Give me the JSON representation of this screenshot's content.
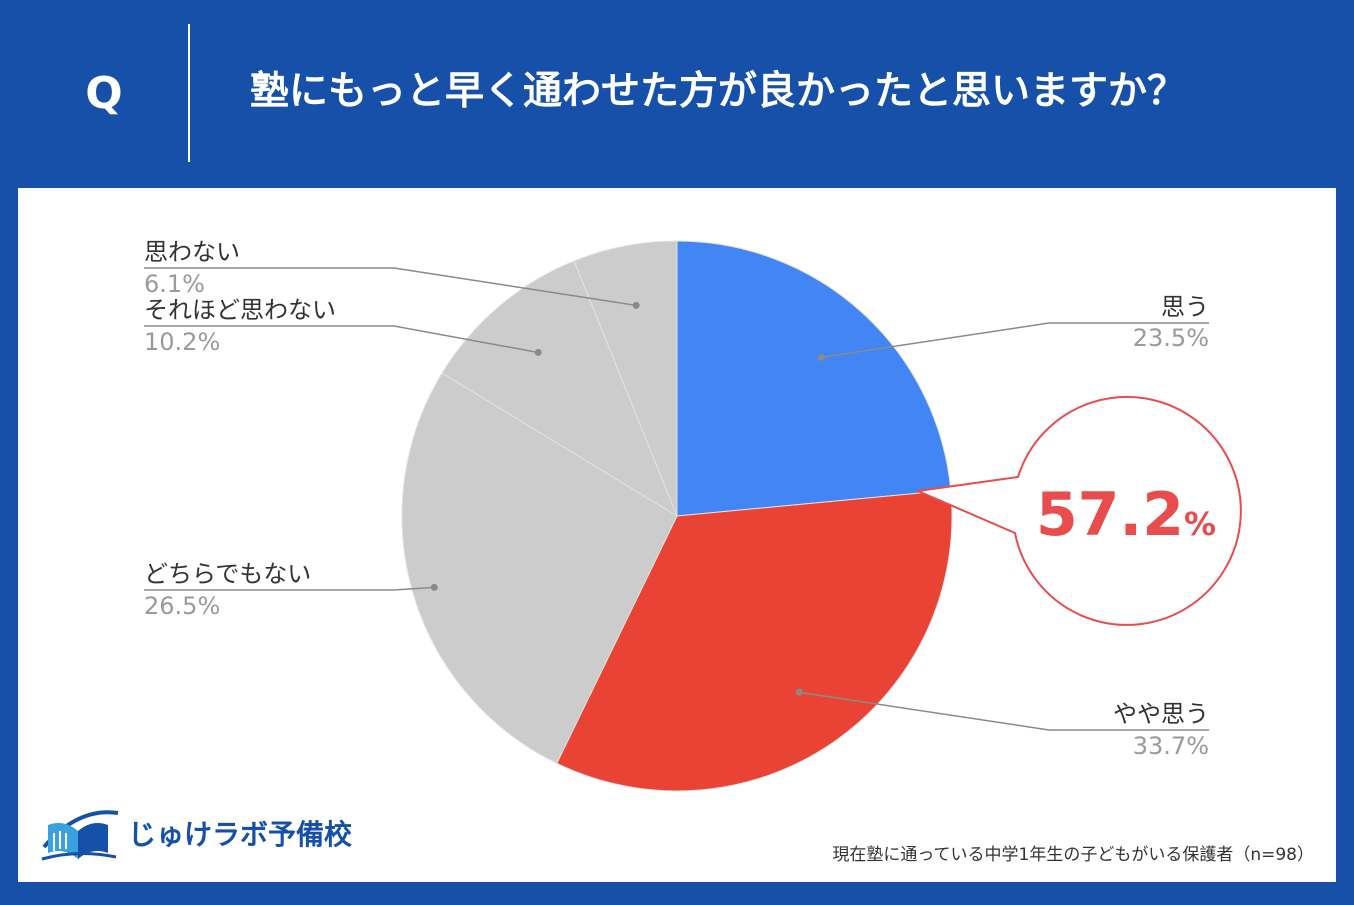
{
  "header": {
    "q_mark": "Q",
    "question": "塾にもっと早く通わせた方が良かったと思いますか？"
  },
  "chart_data": {
    "type": "pie",
    "title": "",
    "slices": [
      {
        "label": "思う",
        "value": 23.5,
        "display": "23.5%",
        "color": "#4285f4"
      },
      {
        "label": "やや思う",
        "value": 33.7,
        "display": "33.7%",
        "color": "#e94335"
      },
      {
        "label": "どちらでもない",
        "value": 26.5,
        "display": "26.5%",
        "color": "#cccccc"
      },
      {
        "label": "それほど思わない",
        "value": 10.2,
        "display": "10.2%",
        "color": "#cccccc"
      },
      {
        "label": "思わない",
        "value": 6.1,
        "display": "6.1%",
        "color": "#cccccc"
      }
    ],
    "start": "12 o'clock, clockwise",
    "callout": {
      "value": 57.2,
      "number": "57.2",
      "unit": "%",
      "color": "#e84c4c"
    }
  },
  "footer": {
    "brand": "じゅけラボ予備校",
    "note": "現在塾に通っている中学1年生の子どもがいる保護者（n=98）"
  }
}
